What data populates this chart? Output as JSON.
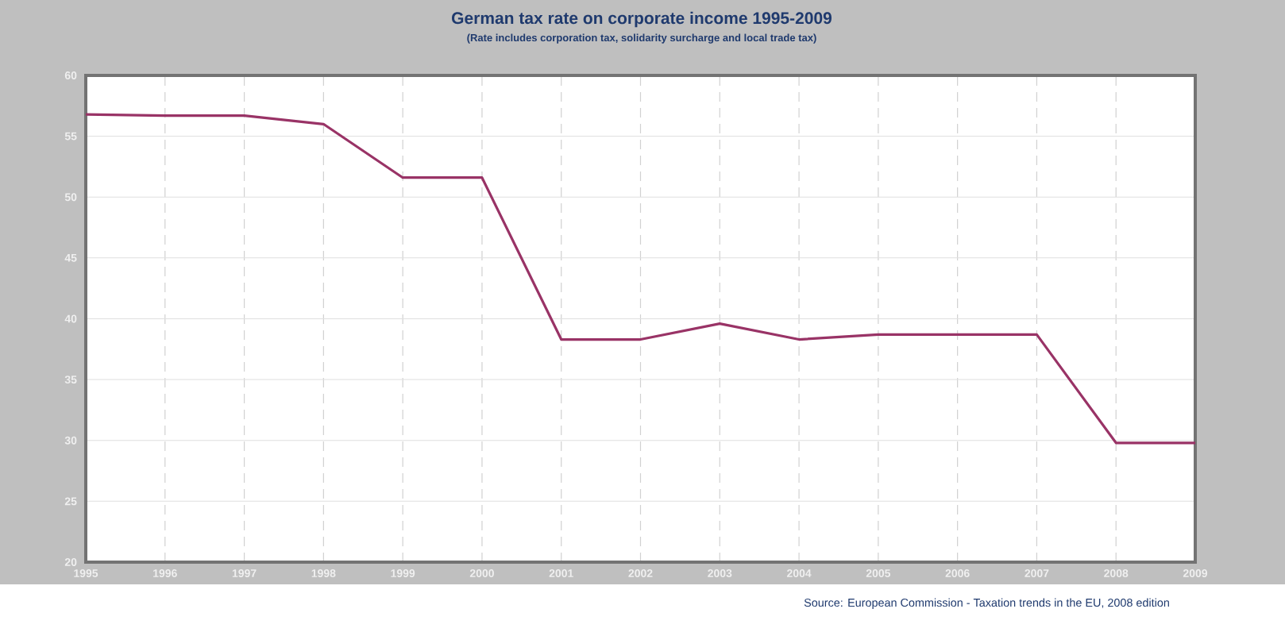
{
  "chart_data": {
    "type": "line",
    "title": "German tax rate on corporate income 1995-2009",
    "subtitle": "(Rate includes corporation tax, solidarity surcharge and local trade tax)",
    "x": [
      1995,
      1996,
      1997,
      1998,
      1999,
      2000,
      2001,
      2002,
      2003,
      2004,
      2005,
      2006,
      2007,
      2008,
      2009
    ],
    "series": [
      {
        "color": "#993366",
        "values": [
          56.8,
          56.7,
          56.7,
          56.0,
          51.6,
          51.6,
          38.3,
          38.3,
          39.6,
          38.3,
          38.7,
          38.7,
          38.7,
          29.8,
          29.8
        ]
      }
    ],
    "xlim": [
      1995,
      2009
    ],
    "xticks": [
      1995,
      1996,
      1997,
      1998,
      1999,
      2000,
      2001,
      2002,
      2003,
      2004,
      2005,
      2006,
      2007,
      2008,
      2009
    ],
    "ylim": [
      20,
      60
    ],
    "yticks": [
      20,
      25,
      30,
      35,
      40,
      45,
      50,
      55,
      60
    ],
    "grid": true,
    "marker": "none",
    "line_style": "solid",
    "annotations": [
      "Source: European Commission - Taxation trends in the EU, 2008 edition"
    ]
  }
}
